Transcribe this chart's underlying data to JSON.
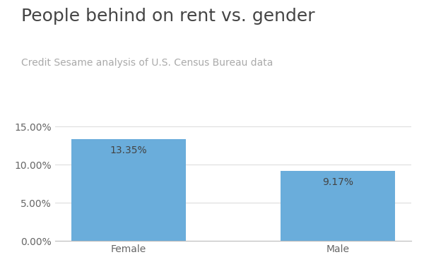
{
  "categories": [
    "Female",
    "Male"
  ],
  "values": [
    0.1335,
    0.0917
  ],
  "bar_color": "#6aaddb",
  "title": "People behind on rent vs. gender",
  "subtitle": "Credit Sesame analysis of U.S. Census Bureau data",
  "title_color": "#444444",
  "subtitle_color": "#aaaaaa",
  "label_color": "#666666",
  "bar_label_color": "#444444",
  "ytick_values": [
    0.0,
    0.05,
    0.1,
    0.15
  ],
  "ylim": [
    0,
    0.165
  ],
  "bar_labels": [
    "13.35%",
    "9.17%"
  ],
  "background_color": "#ffffff",
  "grid_color": "#dddddd",
  "title_fontsize": 18,
  "subtitle_fontsize": 10,
  "bar_label_fontsize": 10,
  "tick_fontsize": 10
}
